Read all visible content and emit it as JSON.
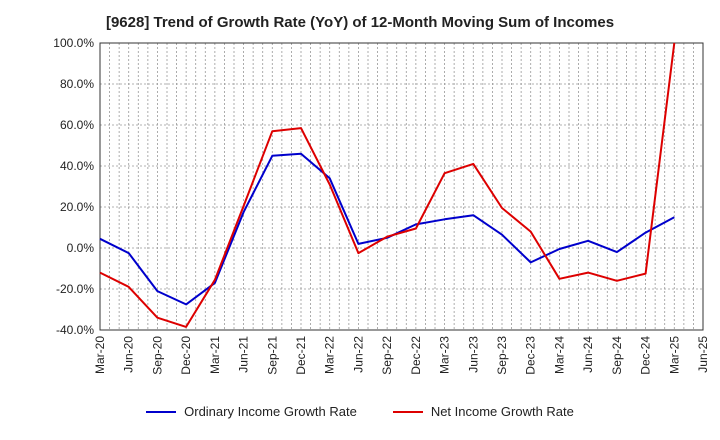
{
  "chart_data": {
    "type": "line",
    "title": "[9628]  Trend of Growth Rate (YoY) of 12-Month Moving Sum of Incomes",
    "xlabel": "",
    "ylabel": "",
    "ylim": [
      -40,
      100
    ],
    "yticks": [
      "100.0%",
      "80.0%",
      "60.0%",
      "40.0%",
      "20.0%",
      "0.0%",
      "-20.0%",
      "-40.0%"
    ],
    "categories": [
      "Mar-20",
      "Jun-20",
      "Sep-20",
      "Dec-20",
      "Mar-21",
      "Jun-21",
      "Sep-21",
      "Dec-21",
      "Mar-22",
      "Jun-22",
      "Sep-22",
      "Dec-22",
      "Mar-23",
      "Jun-23",
      "Sep-23",
      "Dec-23",
      "Mar-24",
      "Jun-24",
      "Sep-24",
      "Dec-24",
      "Mar-25",
      "Jun-25"
    ],
    "grid": true,
    "legend_position": "bottom",
    "series": [
      {
        "name": "Ordinary Income Growth Rate",
        "color": "#0000cc",
        "values": [
          4.5,
          -2.5,
          -21,
          -27.5,
          -17,
          17.5,
          45,
          46,
          34,
          2,
          5,
          11.5,
          14,
          16,
          6.5,
          -7,
          -0.5,
          3.5,
          -2,
          7.5,
          15,
          null
        ]
      },
      {
        "name": "Net Income Growth Rate",
        "color": "#dd0000",
        "values": [
          -12,
          -19,
          -34,
          -38.5,
          -15.5,
          20.5,
          57,
          58.5,
          31,
          -2.5,
          5.5,
          9.5,
          36.5,
          41,
          19.5,
          8,
          -15,
          -12,
          -16,
          -12.5,
          100,
          null
        ]
      }
    ]
  }
}
